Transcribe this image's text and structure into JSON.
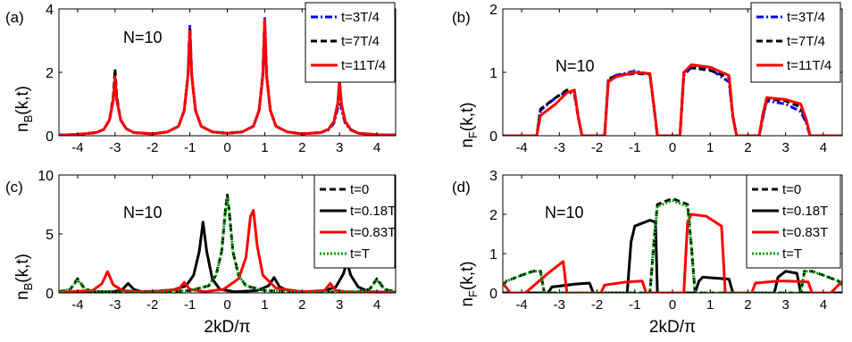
{
  "chart_data": [
    {
      "type": "line",
      "panel_label": "(a)",
      "annotation": "N=10",
      "ylabel": "n_B(k,t)",
      "ylabel_main": "n",
      "ylabel_sub": "B",
      "ylabel_rest": "(k,t)",
      "xlabel": "",
      "xlim": [
        -4.5,
        4.5
      ],
      "ylim": [
        0,
        4
      ],
      "xticks": [
        -4,
        -3,
        -2,
        -1,
        0,
        1,
        2,
        3,
        4
      ],
      "yticks": [
        0,
        2,
        4
      ],
      "legend_position": "top-right",
      "series": [
        {
          "name": "t=3T/4",
          "color": "#0000ff",
          "dash": "8 3 2 3",
          "x": [
            -4.5,
            -4,
            -3.5,
            -3.3,
            -3.15,
            -3.05,
            -3,
            -2.95,
            -2.85,
            -2.7,
            -2.5,
            -2,
            -1.6,
            -1.3,
            -1.15,
            -1.05,
            -1,
            -0.95,
            -0.85,
            -0.7,
            -0.4,
            0,
            0.4,
            0.7,
            0.85,
            0.95,
            1,
            1.05,
            1.15,
            1.3,
            1.6,
            2,
            2.5,
            2.7,
            2.85,
            2.95,
            3,
            3.05,
            3.15,
            3.3,
            3.5,
            4,
            4.5
          ],
          "y": [
            0.02,
            0.04,
            0.1,
            0.2,
            0.5,
            1.1,
            1.6,
            1.1,
            0.5,
            0.22,
            0.1,
            0.06,
            0.12,
            0.3,
            0.8,
            1.9,
            3.5,
            1.9,
            0.8,
            0.3,
            0.12,
            0.08,
            0.12,
            0.3,
            0.8,
            1.9,
            3.7,
            1.9,
            0.8,
            0.3,
            0.12,
            0.06,
            0.1,
            0.18,
            0.4,
            0.85,
            1.3,
            0.85,
            0.4,
            0.18,
            0.08,
            0.03,
            0.02
          ]
        },
        {
          "name": "t=7T/4",
          "color": "#000000",
          "dash": "7 4",
          "x": [
            -4.5,
            -4,
            -3.5,
            -3.3,
            -3.15,
            -3.05,
            -3,
            -2.95,
            -2.85,
            -2.7,
            -2.5,
            -2,
            -1.6,
            -1.3,
            -1.15,
            -1.05,
            -1,
            -0.95,
            -0.85,
            -0.7,
            -0.4,
            0,
            0.4,
            0.7,
            0.85,
            0.95,
            1,
            1.05,
            1.15,
            1.3,
            1.6,
            2,
            2.5,
            2.7,
            2.85,
            2.95,
            3,
            3.05,
            3.15,
            3.3,
            3.5,
            4,
            4.5
          ],
          "y": [
            0.02,
            0.04,
            0.1,
            0.2,
            0.5,
            1.2,
            2.1,
            1.2,
            0.5,
            0.22,
            0.1,
            0.06,
            0.12,
            0.3,
            0.8,
            1.9,
            3.4,
            1.9,
            0.8,
            0.3,
            0.12,
            0.08,
            0.12,
            0.3,
            0.8,
            1.9,
            3.6,
            1.9,
            0.8,
            0.3,
            0.12,
            0.06,
            0.1,
            0.2,
            0.45,
            1.0,
            1.7,
            1.0,
            0.45,
            0.2,
            0.08,
            0.03,
            0.02
          ]
        },
        {
          "name": "t=11T/4",
          "color": "#ff0000",
          "dash": "",
          "x": [
            -4.5,
            -4,
            -3.5,
            -3.3,
            -3.15,
            -3.05,
            -3,
            -2.95,
            -2.85,
            -2.7,
            -2.5,
            -2,
            -1.6,
            -1.3,
            -1.15,
            -1.05,
            -1,
            -0.95,
            -0.85,
            -0.7,
            -0.4,
            0,
            0.4,
            0.7,
            0.85,
            0.95,
            1,
            1.05,
            1.15,
            1.3,
            1.6,
            2,
            2.5,
            2.7,
            2.85,
            2.95,
            3,
            3.05,
            3.15,
            3.3,
            3.5,
            4,
            4.5
          ],
          "y": [
            0.02,
            0.04,
            0.1,
            0.2,
            0.5,
            1.1,
            1.85,
            1.1,
            0.5,
            0.22,
            0.1,
            0.06,
            0.12,
            0.3,
            0.8,
            1.9,
            3.3,
            1.9,
            0.8,
            0.3,
            0.12,
            0.08,
            0.12,
            0.3,
            0.8,
            1.9,
            3.65,
            1.9,
            0.8,
            0.3,
            0.12,
            0.06,
            0.1,
            0.2,
            0.45,
            1.0,
            1.75,
            1.0,
            0.45,
            0.2,
            0.08,
            0.03,
            0.02
          ]
        }
      ]
    },
    {
      "type": "line",
      "panel_label": "(b)",
      "annotation": "N=10",
      "ylabel": "n_F(k,t)",
      "ylabel_main": "n",
      "ylabel_sub": "F",
      "ylabel_rest": "(k,t)",
      "xlabel": "",
      "xlim": [
        -4.5,
        4.5
      ],
      "ylim": [
        0,
        2
      ],
      "xticks": [
        -4,
        -3,
        -2,
        -1,
        0,
        1,
        2,
        3,
        4
      ],
      "yticks": [
        0,
        1,
        2
      ],
      "legend_position": "top-right",
      "series": [
        {
          "name": "t=3T/4",
          "color": "#0000ff",
          "dash": "8 3 2 3",
          "x": [
            -4.5,
            -3.8,
            -3.6,
            -3.5,
            -3.1,
            -2.8,
            -2.6,
            -2.5,
            -2.4,
            -1.8,
            -1.7,
            -1.5,
            -1,
            -0.6,
            -0.5,
            -0.4,
            0.2,
            0.3,
            0.5,
            1,
            1.5,
            1.6,
            1.7,
            2.3,
            2.4,
            2.5,
            3,
            3.4,
            3.55,
            3.65,
            4.5
          ],
          "y": [
            0,
            0,
            0,
            0.4,
            0.6,
            0.7,
            0.65,
            0.3,
            0,
            0,
            0.9,
            0.95,
            1.02,
            0.97,
            0.5,
            0,
            0,
            0.95,
            1.08,
            1.05,
            0.85,
            0.3,
            0,
            0,
            0.3,
            0.55,
            0.5,
            0.38,
            0.2,
            0,
            0
          ]
        },
        {
          "name": "t=7T/4",
          "color": "#000000",
          "dash": "7 4",
          "x": [
            -4.5,
            -3.8,
            -3.6,
            -3.5,
            -3.1,
            -2.8,
            -2.6,
            -2.5,
            -2.4,
            -1.8,
            -1.7,
            -1.5,
            -1,
            -0.6,
            -0.5,
            -0.4,
            0.2,
            0.3,
            0.5,
            1,
            1.5,
            1.6,
            1.7,
            2.3,
            2.4,
            2.5,
            3,
            3.4,
            3.55,
            3.65,
            4.5
          ],
          "y": [
            0,
            0,
            0,
            0.42,
            0.6,
            0.72,
            0.7,
            0.3,
            0,
            0,
            0.88,
            0.95,
            0.98,
            0.97,
            0.5,
            0,
            0,
            1.0,
            1.07,
            1.03,
            0.92,
            0.3,
            0,
            0,
            0.3,
            0.58,
            0.55,
            0.45,
            0.22,
            0,
            0
          ]
        },
        {
          "name": "t=11T/4",
          "color": "#ff0000",
          "dash": "",
          "x": [
            -4.5,
            -3.8,
            -3.6,
            -3.5,
            -3.1,
            -2.8,
            -2.6,
            -2.5,
            -2.4,
            -1.8,
            -1.7,
            -1.5,
            -1,
            -0.6,
            -0.5,
            -0.4,
            0.2,
            0.3,
            0.5,
            1,
            1.5,
            1.6,
            1.7,
            2.3,
            2.4,
            2.5,
            3,
            3.4,
            3.55,
            3.65,
            4.5
          ],
          "y": [
            0,
            0,
            0,
            0.32,
            0.5,
            0.68,
            0.72,
            0.3,
            0,
            0,
            0.85,
            0.93,
            1.0,
            0.98,
            0.5,
            0,
            0,
            1.0,
            1.12,
            1.08,
            0.95,
            0.3,
            0,
            0,
            0.35,
            0.6,
            0.57,
            0.5,
            0.25,
            0,
            0
          ]
        }
      ]
    },
    {
      "type": "line",
      "panel_label": "(c)",
      "annotation": "N=10",
      "ylabel": "n_B(k,t)",
      "ylabel_main": "n",
      "ylabel_sub": "B",
      "ylabel_rest": "(k,t)",
      "xlabel": "2kD/π",
      "xlim": [
        -4.5,
        4.5
      ],
      "ylim": [
        0,
        10
      ],
      "xticks": [
        -4,
        -3,
        -2,
        -1,
        0,
        1,
        2,
        3,
        4
      ],
      "yticks": [
        0,
        5,
        10
      ],
      "legend_position": "top-right",
      "series": [
        {
          "name": "t=0",
          "color": "#000000",
          "dash": "7 4",
          "x": [
            -4.5,
            -4.2,
            -4,
            -3.8,
            -3.5,
            -2,
            -1,
            -0.5,
            -0.3,
            -0.15,
            -0.05,
            0,
            0.05,
            0.15,
            0.3,
            0.5,
            1,
            2,
            3.5,
            3.8,
            4,
            4.2,
            4.5
          ],
          "y": [
            0.1,
            0.3,
            1.2,
            0.3,
            0.1,
            0.05,
            0.2,
            0.6,
            1.5,
            3.5,
            7,
            8.3,
            7,
            3.5,
            1.5,
            0.6,
            0.2,
            0.05,
            0.1,
            0.3,
            1.2,
            0.3,
            0.1
          ]
        },
        {
          "name": "t=0.18T",
          "color": "#000000",
          "dash": "",
          "x": [
            -4.5,
            -3,
            -2.8,
            -2.65,
            -2.5,
            -2.3,
            -1.5,
            -1.1,
            -0.9,
            -0.75,
            -0.65,
            -0.55,
            -0.4,
            -0.2,
            0.2,
            0.8,
            1.1,
            1.25,
            1.4,
            1.7,
            2.5,
            2.9,
            3.1,
            3.2,
            3.3,
            3.5,
            3.8,
            4.5
          ],
          "y": [
            0.05,
            0.1,
            0.3,
            0.8,
            0.3,
            0.1,
            0.2,
            0.6,
            1.5,
            3.5,
            6,
            3.5,
            1.2,
            0.3,
            0.1,
            0.2,
            0.6,
            1.3,
            0.5,
            0.1,
            0.1,
            0.5,
            1.6,
            2.6,
            1.5,
            0.5,
            0.1,
            0.05
          ]
        },
        {
          "name": "t=0.83T",
          "color": "#ff0000",
          "dash": "",
          "x": [
            -4.5,
            -3.6,
            -3.35,
            -3.2,
            -3.05,
            -2.8,
            -2.2,
            -1.3,
            -1.15,
            -1.0,
            -0.6,
            -0.1,
            0.3,
            0.5,
            0.62,
            0.7,
            0.8,
            0.95,
            1.3,
            2,
            2.6,
            2.75,
            2.9,
            3.3,
            4.5
          ],
          "y": [
            0.05,
            0.2,
            0.8,
            1.8,
            0.7,
            0.2,
            0.05,
            0.3,
            0.9,
            0.3,
            0.1,
            0.3,
            1.2,
            3.0,
            6.5,
            7.0,
            4.0,
            1.5,
            0.4,
            0.1,
            0.2,
            0.8,
            0.2,
            0.05,
            0.05
          ]
        },
        {
          "name": "t=T",
          "color": "#00a000",
          "dash": "2 2",
          "x": [
            -4.5,
            -4.2,
            -4,
            -3.8,
            -3.5,
            -2,
            -1,
            -0.5,
            -0.3,
            -0.15,
            -0.05,
            0,
            0.05,
            0.15,
            0.3,
            0.5,
            1,
            2,
            3.5,
            3.8,
            4,
            4.2,
            4.5
          ],
          "y": [
            0.1,
            0.3,
            1.1,
            0.3,
            0.1,
            0.05,
            0.2,
            0.6,
            1.5,
            3.5,
            7,
            8.0,
            7,
            3.5,
            1.5,
            0.6,
            0.2,
            0.05,
            0.1,
            0.3,
            1.1,
            0.3,
            0.1
          ]
        }
      ]
    },
    {
      "type": "line",
      "panel_label": "(d)",
      "annotation": "N=10",
      "ylabel": "n_F(k,t)",
      "ylabel_main": "n",
      "ylabel_sub": "F",
      "ylabel_rest": "(k,t)",
      "xlabel": "2kD/π",
      "xlim": [
        -4.5,
        4.5
      ],
      "ylim": [
        0,
        3
      ],
      "xticks": [
        -4,
        -3,
        -2,
        -1,
        0,
        1,
        2,
        3,
        4
      ],
      "yticks": [
        0,
        1,
        2,
        3
      ],
      "legend_position": "top-right",
      "series": [
        {
          "name": "t=0",
          "color": "#000000",
          "dash": "7 4",
          "x": [
            -4.5,
            -4.4,
            -4,
            -3.7,
            -3.5,
            -3.4,
            -0.6,
            -0.5,
            -0.4,
            0,
            0.4,
            0.5,
            0.6,
            3.4,
            3.5,
            3.7,
            4.0,
            4.4,
            4.5
          ],
          "y": [
            0.2,
            0.3,
            0.45,
            0.55,
            0.55,
            0,
            0,
            1.2,
            2.25,
            2.4,
            2.25,
            1.2,
            0,
            0,
            0.55,
            0.55,
            0.45,
            0.3,
            0.2
          ]
        },
        {
          "name": "t=0.18T",
          "color": "#000000",
          "dash": "",
          "x": [
            -4.5,
            -3.3,
            -3.2,
            -2.6,
            -2.2,
            -2.1,
            -1.2,
            -1.1,
            -1.0,
            -0.6,
            -0.45,
            -0.4,
            0.6,
            0.7,
            0.8,
            1.5,
            1.6,
            2.7,
            2.8,
            3.0,
            3.3,
            3.4,
            4.5
          ],
          "y": [
            0,
            0,
            0.15,
            0.22,
            0.25,
            0,
            0,
            1.3,
            1.7,
            1.85,
            1.8,
            0,
            0,
            0.3,
            0.4,
            0.35,
            0,
            0,
            0.4,
            0.55,
            0.5,
            0,
            0
          ]
        },
        {
          "name": "t=0.83T",
          "color": "#ff0000",
          "dash": "",
          "x": [
            -4.5,
            -4.3,
            -3.9,
            -3.3,
            -2.9,
            -2.8,
            -1.9,
            -1.8,
            -1.2,
            -0.8,
            -0.7,
            0.3,
            0.4,
            0.5,
            0.9,
            1.3,
            1.4,
            2.1,
            2.2,
            2.8,
            3.0,
            3.6,
            3.7,
            4.2,
            4.5
          ],
          "y": [
            0.25,
            0,
            0,
            0.5,
            0.8,
            0,
            0,
            0.2,
            0.28,
            0.3,
            0,
            0,
            1.8,
            2.0,
            1.95,
            1.7,
            0,
            0,
            0.25,
            0.3,
            0.3,
            0.28,
            0,
            0,
            0.3
          ]
        },
        {
          "name": "t=T",
          "color": "#00a000",
          "dash": "2 2",
          "x": [
            -4.5,
            -4.4,
            -4,
            -3.7,
            -3.5,
            -3.4,
            -0.6,
            -0.5,
            -0.4,
            0,
            0.4,
            0.5,
            0.6,
            3.4,
            3.5,
            3.7,
            4.0,
            4.4,
            4.5
          ],
          "y": [
            0.2,
            0.3,
            0.45,
            0.55,
            0.55,
            0,
            0,
            1.2,
            2.2,
            2.35,
            2.2,
            1.2,
            0,
            0,
            0.55,
            0.55,
            0.45,
            0.3,
            0.2
          ]
        }
      ]
    }
  ]
}
